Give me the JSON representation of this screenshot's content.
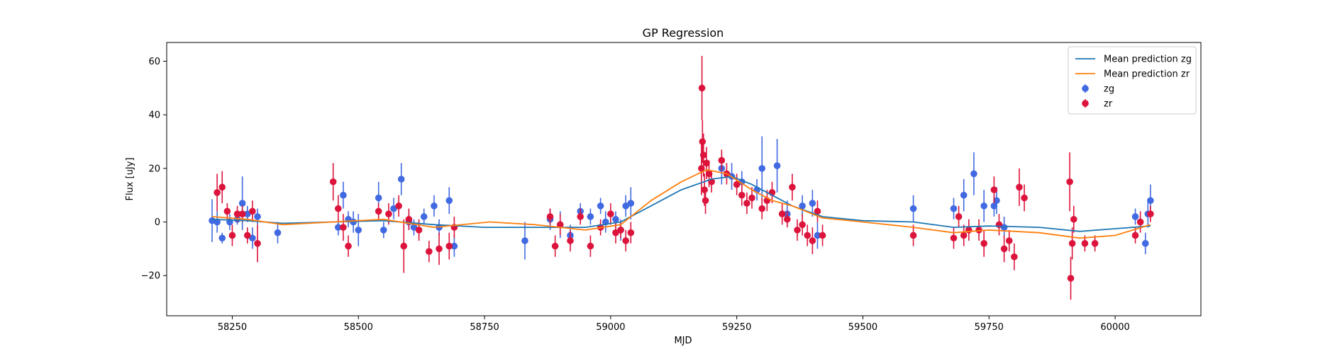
{
  "chart_data": {
    "type": "scatter",
    "title": "GP Regression",
    "xlabel": "MJD",
    "ylabel": "Flux [uJy]",
    "xlim": [
      58120,
      60170
    ],
    "ylim": [
      -35,
      67
    ],
    "xticks": [
      58250,
      58500,
      58750,
      59000,
      59250,
      59500,
      59750,
      60000
    ],
    "yticks": [
      -20,
      0,
      20,
      40,
      60
    ],
    "grid": false,
    "legend_position": "top-right",
    "series": [
      {
        "name": "Mean prediction zg",
        "kind": "line",
        "color": "#1f77b4",
        "points": [
          [
            58210,
            1
          ],
          [
            58280,
            0.5
          ],
          [
            58350,
            -0.5
          ],
          [
            58450,
            0
          ],
          [
            58550,
            0.5
          ],
          [
            58650,
            -1
          ],
          [
            58750,
            -2
          ],
          [
            58850,
            -2
          ],
          [
            58950,
            -2
          ],
          [
            59020,
            0
          ],
          [
            59080,
            6
          ],
          [
            59140,
            12
          ],
          [
            59200,
            16
          ],
          [
            59240,
            17
          ],
          [
            59280,
            14
          ],
          [
            59320,
            10
          ],
          [
            59360,
            6
          ],
          [
            59420,
            2
          ],
          [
            59500,
            0.5
          ],
          [
            59600,
            0
          ],
          [
            59680,
            -2
          ],
          [
            59750,
            -1.5
          ],
          [
            59850,
            -2
          ],
          [
            59930,
            -3.5
          ],
          [
            60000,
            -2.5
          ],
          [
            60070,
            -1.5
          ]
        ]
      },
      {
        "name": "Mean prediction zr",
        "kind": "line",
        "color": "#ff7f0e",
        "points": [
          [
            58210,
            2
          ],
          [
            58280,
            1
          ],
          [
            58350,
            -1
          ],
          [
            58450,
            0
          ],
          [
            58550,
            1
          ],
          [
            58650,
            -2
          ],
          [
            58760,
            0
          ],
          [
            58850,
            -1
          ],
          [
            58950,
            -3
          ],
          [
            59020,
            -1
          ],
          [
            59080,
            8
          ],
          [
            59140,
            15
          ],
          [
            59190,
            19.5
          ],
          [
            59230,
            18
          ],
          [
            59280,
            12
          ],
          [
            59320,
            8
          ],
          [
            59360,
            6
          ],
          [
            59420,
            1.5
          ],
          [
            59500,
            0
          ],
          [
            59600,
            -2
          ],
          [
            59680,
            -4
          ],
          [
            59750,
            -3
          ],
          [
            59850,
            -4
          ],
          [
            59930,
            -6
          ],
          [
            60000,
            -5
          ],
          [
            60070,
            -1
          ]
        ]
      },
      {
        "name": "zg",
        "kind": "scatter",
        "color": "#4169e1",
        "points": [
          [
            58210,
            0.5,
            8
          ],
          [
            58220,
            0,
            4
          ],
          [
            58230,
            -6,
            2
          ],
          [
            58245,
            0,
            3
          ],
          [
            58260,
            1,
            2
          ],
          [
            58270,
            7,
            10
          ],
          [
            58280,
            3,
            3
          ],
          [
            58290,
            -6,
            4
          ],
          [
            58300,
            2,
            3
          ],
          [
            58340,
            -4,
            4
          ],
          [
            58460,
            -2,
            3
          ],
          [
            58470,
            10,
            5
          ],
          [
            58480,
            1,
            3
          ],
          [
            58490,
            0,
            4
          ],
          [
            58500,
            -3,
            6
          ],
          [
            58540,
            9,
            6
          ],
          [
            58550,
            -3,
            3
          ],
          [
            58570,
            5,
            4
          ],
          [
            58585,
            16,
            6
          ],
          [
            58600,
            0,
            3
          ],
          [
            58610,
            -2,
            3
          ],
          [
            58630,
            2,
            3
          ],
          [
            58650,
            6,
            4
          ],
          [
            58660,
            -2,
            3
          ],
          [
            58680,
            8,
            5
          ],
          [
            58690,
            -9,
            4
          ],
          [
            58830,
            -7,
            7
          ],
          [
            58880,
            1,
            4
          ],
          [
            58900,
            -1,
            5
          ],
          [
            58920,
            -5,
            4
          ],
          [
            58940,
            4,
            3
          ],
          [
            58960,
            2,
            3
          ],
          [
            58980,
            6,
            3
          ],
          [
            58990,
            0,
            4
          ],
          [
            59010,
            1,
            3
          ],
          [
            59020,
            -3,
            4
          ],
          [
            59030,
            6,
            4
          ],
          [
            59040,
            7,
            6
          ],
          [
            59220,
            20,
            6
          ],
          [
            59240,
            17,
            5
          ],
          [
            59260,
            15,
            4
          ],
          [
            59290,
            12,
            4
          ],
          [
            59300,
            20,
            12
          ],
          [
            59330,
            21,
            10
          ],
          [
            59350,
            3,
            5
          ],
          [
            59380,
            6,
            4
          ],
          [
            59400,
            7,
            5
          ],
          [
            59410,
            -5,
            5
          ],
          [
            59600,
            5,
            5
          ],
          [
            59680,
            5,
            4
          ],
          [
            59700,
            10,
            6
          ],
          [
            59720,
            18,
            8
          ],
          [
            59740,
            6,
            6
          ],
          [
            59760,
            6,
            4
          ],
          [
            59765,
            8,
            5
          ],
          [
            59780,
            -2,
            4
          ],
          [
            60040,
            2,
            3
          ],
          [
            60060,
            -8,
            4
          ],
          [
            60065,
            3,
            5
          ],
          [
            60070,
            8,
            6
          ]
        ]
      },
      {
        "name": "zr",
        "kind": "scatter",
        "color": "#dc143c",
        "points": [
          [
            58220,
            11,
            7
          ],
          [
            58230,
            13,
            6
          ],
          [
            58240,
            4,
            3
          ],
          [
            58250,
            -5,
            4
          ],
          [
            58260,
            3,
            3
          ],
          [
            58270,
            3,
            3
          ],
          [
            58280,
            -5,
            3
          ],
          [
            58290,
            4,
            4
          ],
          [
            58300,
            -8,
            7
          ],
          [
            58450,
            15,
            7
          ],
          [
            58460,
            5,
            5
          ],
          [
            58470,
            -2,
            5
          ],
          [
            58480,
            -9,
            4
          ],
          [
            58540,
            4,
            3
          ],
          [
            58560,
            3,
            4
          ],
          [
            58580,
            6,
            4
          ],
          [
            58590,
            -9,
            10
          ],
          [
            58600,
            1,
            4
          ],
          [
            58620,
            -3,
            4
          ],
          [
            58640,
            -11,
            4
          ],
          [
            58660,
            -10,
            6
          ],
          [
            58680,
            -9,
            5
          ],
          [
            58690,
            -2,
            4
          ],
          [
            58880,
            2,
            3
          ],
          [
            58890,
            -9,
            4
          ],
          [
            58900,
            -1,
            4
          ],
          [
            58920,
            -7,
            4
          ],
          [
            58940,
            2,
            3
          ],
          [
            58960,
            -9,
            4
          ],
          [
            58980,
            -2,
            3
          ],
          [
            59000,
            3,
            4
          ],
          [
            59010,
            -4,
            4
          ],
          [
            59020,
            -3,
            3
          ],
          [
            59030,
            -7,
            4
          ],
          [
            59040,
            -4,
            4
          ],
          [
            59180,
            20,
            10
          ],
          [
            59181,
            50,
            12
          ],
          [
            59182,
            30,
            8
          ],
          [
            59184,
            25,
            8
          ],
          [
            59186,
            12,
            6
          ],
          [
            59188,
            8,
            5
          ],
          [
            59190,
            22,
            6
          ],
          [
            59195,
            18,
            5
          ],
          [
            59200,
            15,
            4
          ],
          [
            59220,
            23,
            4
          ],
          [
            59230,
            18,
            4
          ],
          [
            59250,
            14,
            4
          ],
          [
            59260,
            10,
            4
          ],
          [
            59270,
            7,
            4
          ],
          [
            59280,
            9,
            4
          ],
          [
            59300,
            5,
            4
          ],
          [
            59310,
            8,
            4
          ],
          [
            59320,
            11,
            4
          ],
          [
            59340,
            3,
            4
          ],
          [
            59350,
            1,
            3
          ],
          [
            59360,
            13,
            5
          ],
          [
            59370,
            -3,
            4
          ],
          [
            59380,
            -1,
            4
          ],
          [
            59390,
            -5,
            4
          ],
          [
            59400,
            -7,
            5
          ],
          [
            59410,
            4,
            4
          ],
          [
            59420,
            -5,
            4
          ],
          [
            59600,
            -5,
            4
          ],
          [
            59680,
            -6,
            4
          ],
          [
            59690,
            2,
            4
          ],
          [
            59700,
            -5,
            4
          ],
          [
            59710,
            -3,
            4
          ],
          [
            59730,
            -3,
            4
          ],
          [
            59740,
            -8,
            5
          ],
          [
            59760,
            12,
            5
          ],
          [
            59770,
            -1,
            4
          ],
          [
            59780,
            -10,
            5
          ],
          [
            59790,
            -7,
            4
          ],
          [
            59800,
            -13,
            5
          ],
          [
            59810,
            13,
            7
          ],
          [
            59820,
            9,
            5
          ],
          [
            59910,
            15,
            11
          ],
          [
            59912,
            -21,
            8
          ],
          [
            59915,
            -8,
            6
          ],
          [
            59918,
            1,
            5
          ],
          [
            59940,
            -8,
            3
          ],
          [
            59960,
            -8,
            3
          ],
          [
            60040,
            -5,
            3
          ],
          [
            60050,
            0,
            4
          ],
          [
            60070,
            3,
            3
          ]
        ]
      }
    ]
  }
}
